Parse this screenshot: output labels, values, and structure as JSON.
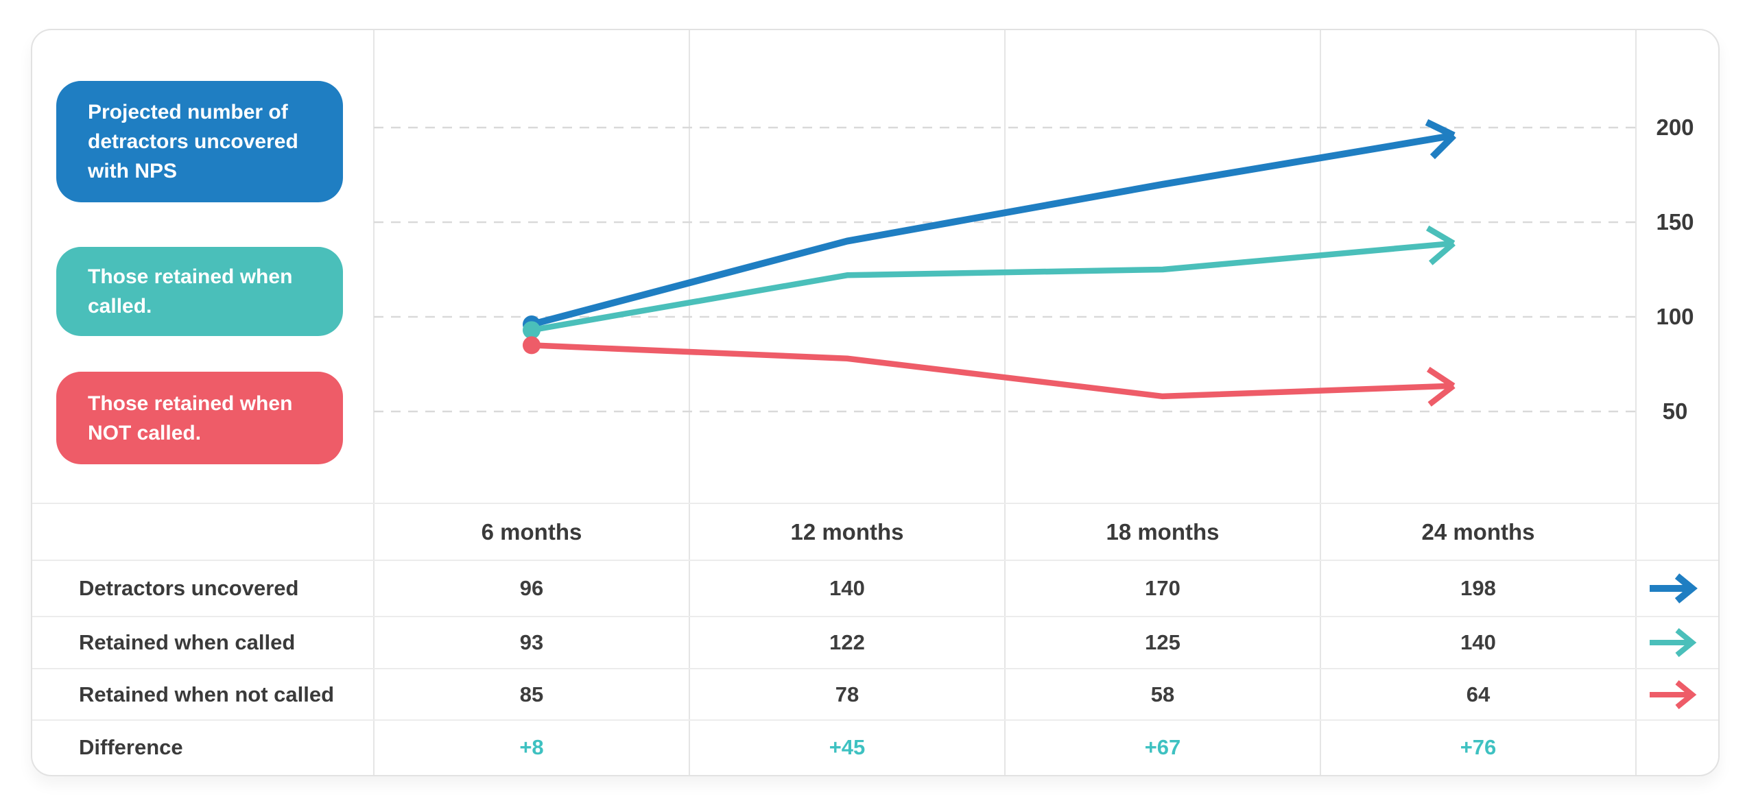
{
  "legend": {
    "items": [
      {
        "id": "detractors",
        "color": "#1f7ec2",
        "lines": [
          "Projected number of",
          "detractors uncovered",
          "with NPS"
        ]
      },
      {
        "id": "retained-called",
        "color": "#4abfba",
        "lines": [
          "Those retained when",
          "called."
        ]
      },
      {
        "id": "retained-not-called",
        "color": "#ee5c68",
        "lines": [
          "Those retained when",
          "NOT called."
        ]
      }
    ]
  },
  "chart_data": {
    "type": "line",
    "title": "",
    "categories": [
      "6 months",
      "12 months",
      "18 months",
      "24 months"
    ],
    "series": [
      {
        "name": "Detractors uncovered",
        "color": "#1f7ec2",
        "values": [
          96,
          140,
          170,
          198
        ]
      },
      {
        "name": "Retained when called",
        "color": "#4abfba",
        "values": [
          93,
          122,
          125,
          140
        ]
      },
      {
        "name": "Retained when not called",
        "color": "#ee5c68",
        "values": [
          85,
          78,
          58,
          64
        ]
      }
    ],
    "y_axis": {
      "side": "right",
      "ticks": [
        50,
        100,
        150,
        200
      ],
      "ylim": [
        0,
        250
      ]
    },
    "grid": {
      "horizontal": "dashed",
      "vertical": "solid"
    },
    "legend_position": "left",
    "marker_start": "dot",
    "marker_end": "arrow"
  },
  "table": {
    "column_headers": [
      "6 months",
      "12 months",
      "18 months",
      "24 months"
    ],
    "rows": [
      {
        "label": "Detractors uncovered",
        "values": [
          "96",
          "140",
          "170",
          "198"
        ],
        "arrow_color": "#1f7ec2"
      },
      {
        "label": "Retained when called",
        "values": [
          "93",
          "122",
          "125",
          "140"
        ],
        "arrow_color": "#4abfba"
      },
      {
        "label": "Retained when not called",
        "values": [
          "85",
          "78",
          "58",
          "64"
        ],
        "arrow_color": "#ee5c68"
      },
      {
        "label": "Difference",
        "values": [
          "+8",
          "+45",
          "+67",
          "+76"
        ]
      }
    ],
    "difference_color": "#3ec1c1"
  }
}
